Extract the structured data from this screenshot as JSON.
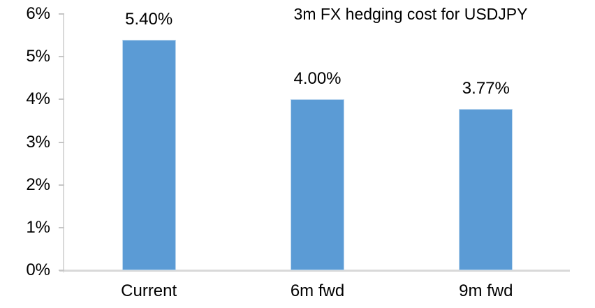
{
  "chart_data": {
    "type": "bar",
    "title": "3m FX hedging cost for USDJPY",
    "categories": [
      "Current",
      "6m fwd",
      "9m fwd"
    ],
    "values": [
      5.4,
      4.0,
      3.77
    ],
    "data_labels": [
      "5.40%",
      "4.00%",
      "3.77%"
    ],
    "ytick_labels": [
      "0%",
      "1%",
      "2%",
      "3%",
      "4%",
      "5%",
      "6%"
    ],
    "ylim": [
      0,
      6
    ],
    "grid": false,
    "legend_position": "none",
    "bar_color": "#5b9bd5",
    "bar_border_color": "#bdd7ee",
    "axis_color": "#d9d9d9",
    "text_color": "#000000"
  }
}
